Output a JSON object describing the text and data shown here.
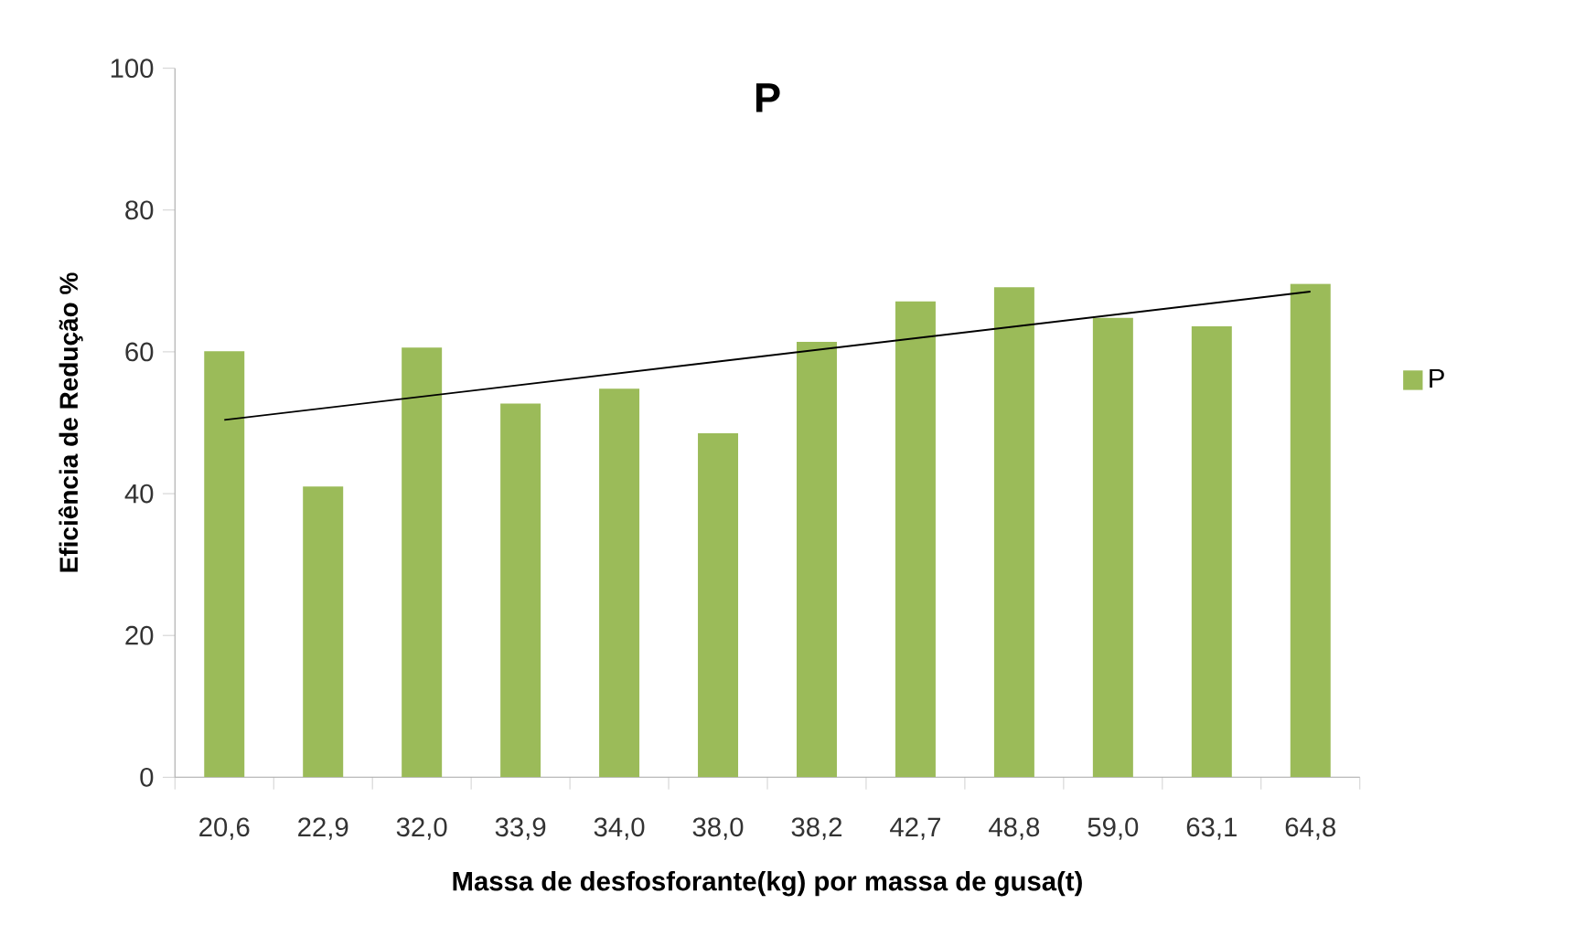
{
  "chart_data": {
    "type": "bar",
    "title": "P",
    "xlabel": "Massa de desfosforante(kg)  por massa de gusa(t)",
    "ylabel": "Eficiência de Redução %",
    "categories": [
      "20,6",
      "22,9",
      "32,0",
      "33,9",
      "34,0",
      "38,0",
      "38,2",
      "42,7",
      "48,8",
      "59,0",
      "63,1",
      "64,8"
    ],
    "series": [
      {
        "name": "P",
        "color": "#9bbb59",
        "values": [
          60.1,
          41.0,
          60.6,
          52.7,
          54.8,
          48.5,
          61.4,
          67.1,
          69.1,
          64.8,
          63.6,
          69.6
        ]
      },
      {
        "type": "line",
        "color": "#000000",
        "x": [
          "20,6",
          "64,8"
        ],
        "values": [
          50.4,
          68.5
        ]
      }
    ],
    "ylim": [
      0,
      100
    ],
    "yticks": [
      0,
      20,
      40,
      60,
      80,
      100
    ],
    "grid": false,
    "legend": "right"
  }
}
